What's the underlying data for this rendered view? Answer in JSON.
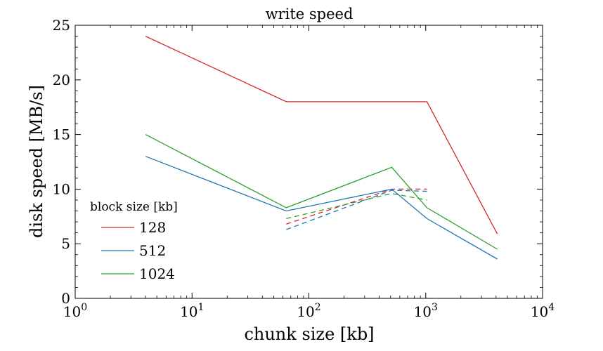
{
  "chart_data": {
    "type": "line",
    "title": "write speed",
    "xlabel": "chunk size [kb]",
    "ylabel": "disk speed [MB/s]",
    "xscale": "log",
    "xlim": [
      1,
      10000
    ],
    "ylim": [
      0,
      25
    ],
    "x_ticks": [
      1,
      10,
      100,
      1000,
      10000
    ],
    "x_tick_labels": [
      {
        "base": "10",
        "exp": "0"
      },
      {
        "base": "10",
        "exp": "1"
      },
      {
        "base": "10",
        "exp": "2"
      },
      {
        "base": "10",
        "exp": "3"
      },
      {
        "base": "10",
        "exp": "4"
      }
    ],
    "y_ticks": [
      0,
      5,
      10,
      15,
      20,
      25
    ],
    "y_tick_labels": [
      "0",
      "5",
      "10",
      "15",
      "20",
      "25"
    ],
    "grid": false,
    "legend": {
      "title": "block size [kb]",
      "placement": "center-left"
    },
    "series": [
      {
        "name": "128",
        "color": "#d62728",
        "style": "solid",
        "x": [
          4,
          64,
          512,
          1024,
          4096
        ],
        "y": [
          24,
          18,
          18,
          18,
          5.9
        ]
      },
      {
        "name": "512",
        "color": "#1f77b4",
        "style": "solid",
        "x": [
          4,
          64,
          512,
          1024,
          4096
        ],
        "y": [
          13,
          8,
          10,
          7.3,
          3.6
        ]
      },
      {
        "name": "1024",
        "color": "#2ca02c",
        "style": "solid",
        "x": [
          4,
          64,
          512,
          1024,
          4096
        ],
        "y": [
          15,
          8.3,
          12,
          8.3,
          4.5
        ]
      }
    ],
    "dashed_series": [
      {
        "color": "#d62728",
        "x": [
          64,
          512,
          1024
        ],
        "y": [
          6.8,
          10,
          10
        ]
      },
      {
        "color": "#1f77b4",
        "x": [
          64,
          512,
          1024
        ],
        "y": [
          6.3,
          9.9,
          9.8
        ]
      },
      {
        "color": "#2ca02c",
        "x": [
          64,
          512,
          1024
        ],
        "y": [
          7.3,
          9.6,
          9.0
        ]
      }
    ]
  }
}
